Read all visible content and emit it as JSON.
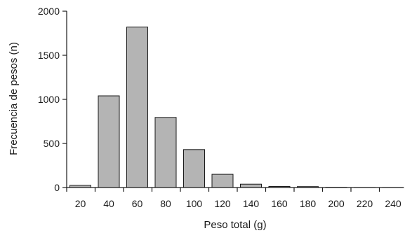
{
  "chart_data": {
    "type": "bar",
    "title": "",
    "xlabel": "Peso total (g)",
    "ylabel": "Frecuencia de pesos (n)",
    "categories": [
      "20",
      "40",
      "60",
      "80",
      "100",
      "120",
      "140",
      "160",
      "180",
      "200",
      "220",
      "240"
    ],
    "values": [
      25,
      1040,
      1820,
      795,
      430,
      150,
      38,
      12,
      10,
      2,
      1,
      1
    ],
    "yticks": [
      "0",
      "500",
      "1000",
      "1500",
      "2000"
    ],
    "ylim": [
      0,
      2000
    ],
    "grid": false,
    "legend": "none",
    "bar_color": "#b4b4b4",
    "bar_edge_color": "#1a1a1a"
  }
}
